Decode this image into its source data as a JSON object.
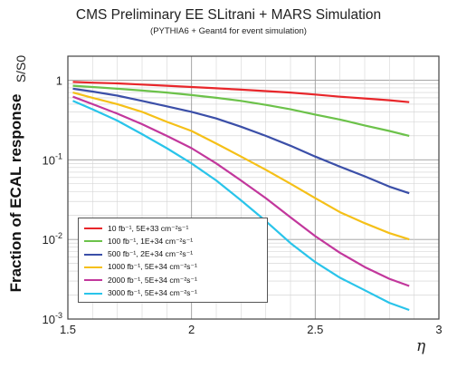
{
  "chart_data": {
    "type": "line",
    "title": "CMS Preliminary EE SLitrani + MARS Simulation",
    "subtitle": "(PYTHIA6 + Geant4 for event simulation)",
    "ylabel": "Fraction of ECAL response",
    "ylabel_top": "S/S0",
    "xlabel": "η",
    "xlim": [
      1.5,
      3.0
    ],
    "ylim": [
      0.001,
      2.0
    ],
    "yscale": "log",
    "grid": true,
    "legend_position": "bottom-left",
    "x_ticks": [
      "1.5",
      "2",
      "2.5",
      "3"
    ],
    "x_tick_values": [
      1.5,
      2.0,
      2.5,
      3.0
    ],
    "y_ticks": [
      "10^-3",
      "10^-2",
      "10^-1",
      "1"
    ],
    "y_tick_values": [
      0.001,
      0.01,
      0.1,
      1.0
    ],
    "x": [
      1.52,
      1.6,
      1.7,
      1.8,
      1.9,
      2.0,
      2.1,
      2.2,
      2.3,
      2.4,
      2.5,
      2.6,
      2.7,
      2.8,
      2.88
    ],
    "series": [
      {
        "name": "10 fb-1, 5E+33 cm-2s-1",
        "color": "#e8262a",
        "values": [
          0.95,
          0.93,
          0.91,
          0.88,
          0.85,
          0.82,
          0.79,
          0.76,
          0.73,
          0.7,
          0.66,
          0.62,
          0.59,
          0.56,
          0.53
        ]
      },
      {
        "name": "100 fb-1, 1E+34 cm-2s-1",
        "color": "#6cc24a",
        "values": [
          0.85,
          0.82,
          0.78,
          0.74,
          0.7,
          0.65,
          0.6,
          0.55,
          0.49,
          0.43,
          0.37,
          0.32,
          0.27,
          0.23,
          0.2
        ]
      },
      {
        "name": "500 fb-1, 2E+34 cm-2s-1",
        "color": "#3b4fa8",
        "values": [
          0.78,
          0.72,
          0.64,
          0.55,
          0.47,
          0.4,
          0.33,
          0.26,
          0.2,
          0.15,
          0.11,
          0.082,
          0.062,
          0.046,
          0.038
        ]
      },
      {
        "name": "1000 fb-1, 5E+34 cm-2s-1",
        "color": "#f5c018",
        "values": [
          0.7,
          0.6,
          0.5,
          0.4,
          0.3,
          0.23,
          0.16,
          0.11,
          0.075,
          0.05,
          0.033,
          0.022,
          0.016,
          0.012,
          0.01
        ]
      },
      {
        "name": "2000 fb-1, 5E+34 cm-2s-1",
        "color": "#c2379c",
        "values": [
          0.62,
          0.5,
          0.38,
          0.28,
          0.2,
          0.14,
          0.09,
          0.055,
          0.033,
          0.019,
          0.011,
          0.0068,
          0.0045,
          0.0032,
          0.0026
        ]
      },
      {
        "name": "3000 fb-1, 5E+34 cm-2s-1",
        "color": "#29c4ea",
        "values": [
          0.55,
          0.43,
          0.31,
          0.21,
          0.14,
          0.09,
          0.055,
          0.031,
          0.017,
          0.009,
          0.0052,
          0.0033,
          0.0023,
          0.0016,
          0.0013
        ]
      }
    ]
  },
  "legend_labels": [
    "10 fb⁻¹, 5E+33 cm⁻²s⁻¹",
    "100 fb⁻¹, 1E+34 cm⁻²s⁻¹",
    "500 fb⁻¹, 2E+34 cm⁻²s⁻¹",
    "1000 fb⁻¹, 5E+34 cm⁻²s⁻¹",
    "2000 fb⁻¹, 5E+34 cm⁻²s⁻¹",
    "3000 fb⁻¹, 5E+34 cm⁻²s⁻¹"
  ]
}
